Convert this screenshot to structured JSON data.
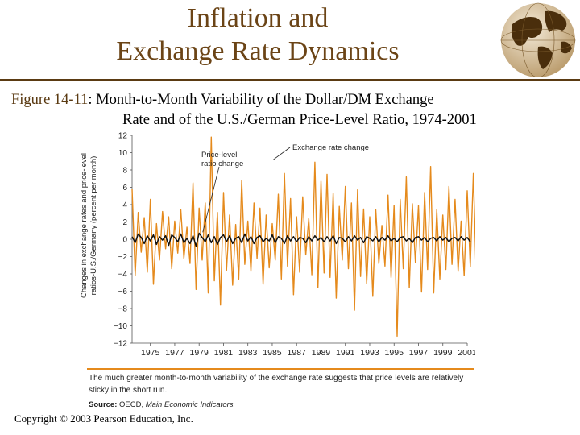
{
  "header": {
    "title_line1": "Inflation and",
    "title_line2": "Exchange Rate Dynamics"
  },
  "caption": {
    "figure_label": "Figure 14-11",
    "line1": ": Month-to-Month Variability of the Dollar/DM Exchange",
    "line2": "Rate and of the U.S./German Price-Level Ratio, 1974-2001"
  },
  "colors": {
    "title": "#6b4416",
    "exchange_series": "#e58a1c",
    "price_series": "#111111",
    "rule": "#5a3a12"
  },
  "chart_data": {
    "type": "line",
    "title": "",
    "xlabel": "",
    "ylabel_line1": "Changes in exchange rates and price-level",
    "ylabel_line2": "ratios-U.S./Germany (percent per month)",
    "ylim": [
      -12,
      12
    ],
    "yticks": [
      "12",
      "10",
      "8",
      "6",
      "4",
      "2",
      "0",
      "−2",
      "−4",
      "−6",
      "−8",
      "−10",
      "−12"
    ],
    "xlim": [
      1974,
      2001.5
    ],
    "xticks": [
      "1975",
      "1977",
      "1979",
      "1981",
      "1983",
      "1985",
      "1987",
      "1989",
      "1991",
      "1993",
      "1995",
      "1997",
      "1999",
      "2001"
    ],
    "annotations": [
      {
        "label_line1": "Exchange rate change",
        "label_line2": "",
        "x": 1985.6,
        "y": 9.2
      },
      {
        "label_line1": "Price-level",
        "label_line2": "ratio change",
        "x": 1979.8,
        "y": 0.8
      }
    ],
    "series": [
      {
        "name": "Exchange rate change",
        "x_start": 1974,
        "step": 0.25,
        "values": [
          5.8,
          -4.2,
          3.1,
          -1.5,
          2.5,
          -3.8,
          4.6,
          -5.2,
          1.8,
          -2.4,
          3.2,
          -1.1,
          2.6,
          -3.4,
          2.1,
          -1.6,
          3.4,
          -2.2,
          1.4,
          -2.8,
          6.5,
          -5.8,
          3.6,
          -2.4,
          4.2,
          -6.2,
          11.8,
          -4.8,
          3.1,
          -7.6,
          5.4,
          -3.6,
          2.8,
          -5.3,
          1.7,
          -4.6,
          6.8,
          -2.9,
          2.1,
          -3.7,
          4.2,
          -2.2,
          3.6,
          -5.2,
          2.8,
          -3.3,
          1.8,
          -2.4,
          5.2,
          -4.6,
          7.6,
          -3.1,
          4.7,
          -6.4,
          2.6,
          -3.8,
          4.9,
          -1.8,
          2.4,
          -4.1,
          8.9,
          -5.6,
          6.7,
          -3.9,
          7.5,
          -4.4,
          5.3,
          -6.8,
          3.8,
          -2.4,
          6.1,
          -3.4,
          4.2,
          -8.2,
          5.7,
          -4.3,
          3.5,
          -5.1,
          2.6,
          -6.6,
          3.4,
          -2.8,
          1.6,
          -3.1,
          5.1,
          -4.4,
          3.9,
          -11.2,
          4.6,
          -3.4,
          7.2,
          -5.6,
          4.1,
          -2.7,
          3.9,
          -6.1,
          5.4,
          -3.5,
          8.4,
          -6.2,
          3.4,
          -4.6,
          2.8,
          -3.5,
          6.1,
          -2.9,
          4.6,
          -3.7,
          2.1,
          -4.2,
          5.6,
          -3.2,
          7.6,
          -4.4
        ],
        "color": "#e58a1c"
      },
      {
        "name": "Price-level ratio change",
        "x_start": 1974,
        "step": 0.25,
        "values": [
          0.3,
          -0.4,
          0.6,
          0.2,
          -0.5,
          0.4,
          -0.2,
          0.5,
          -0.6,
          0.3,
          -0.1,
          0.4,
          -0.7,
          0.5,
          0.2,
          -0.3,
          0.6,
          -0.4,
          0.1,
          -0.5,
          0.4,
          -0.8,
          0.7,
          0.2,
          -0.3,
          0.5,
          -0.4,
          0.3,
          -0.6,
          0.2,
          0.5,
          -0.3,
          0.4,
          -0.5,
          0.1,
          0.3,
          -0.4,
          0.6,
          -0.2,
          0.3,
          -0.5,
          0.2,
          0.4,
          -0.3,
          0.1,
          -0.2,
          0.5,
          -0.4,
          0.3,
          0.1,
          -0.5,
          0.4,
          -0.2,
          0.3,
          -0.3,
          0.2,
          0.1,
          -0.4,
          0.3,
          -0.2,
          0.4,
          -0.1,
          0.2,
          -0.3,
          0.3,
          -0.2,
          0.4,
          -0.5,
          0.2,
          0.1,
          -0.3,
          0.3,
          -0.2,
          0.4,
          -0.1,
          0.2,
          -0.4,
          0.3,
          0.1,
          -0.2,
          0.3,
          -0.3,
          0.2,
          -0.1,
          0.4,
          -0.2,
          0.1,
          -0.3,
          0.2,
          0.3,
          -0.2,
          0.1,
          -0.4,
          0.2,
          0.3,
          -0.1,
          0.2,
          -0.3,
          0.1,
          0.2,
          -0.2,
          0.3,
          -0.1,
          0.2,
          -0.3,
          0.1,
          0.2,
          -0.2,
          0.3,
          -0.1,
          0.2,
          -0.3
        ],
        "color": "#111111"
      }
    ]
  },
  "note": {
    "text": "The much greater month-to-month variability of the exchange rate suggests that price levels are relatively sticky in the short run."
  },
  "source": {
    "label": "Source:",
    "text": "OECD,",
    "publication": "Main Economic Indicators."
  },
  "footer": {
    "copyright": "Copyright © 2003 Pearson Education, Inc."
  }
}
